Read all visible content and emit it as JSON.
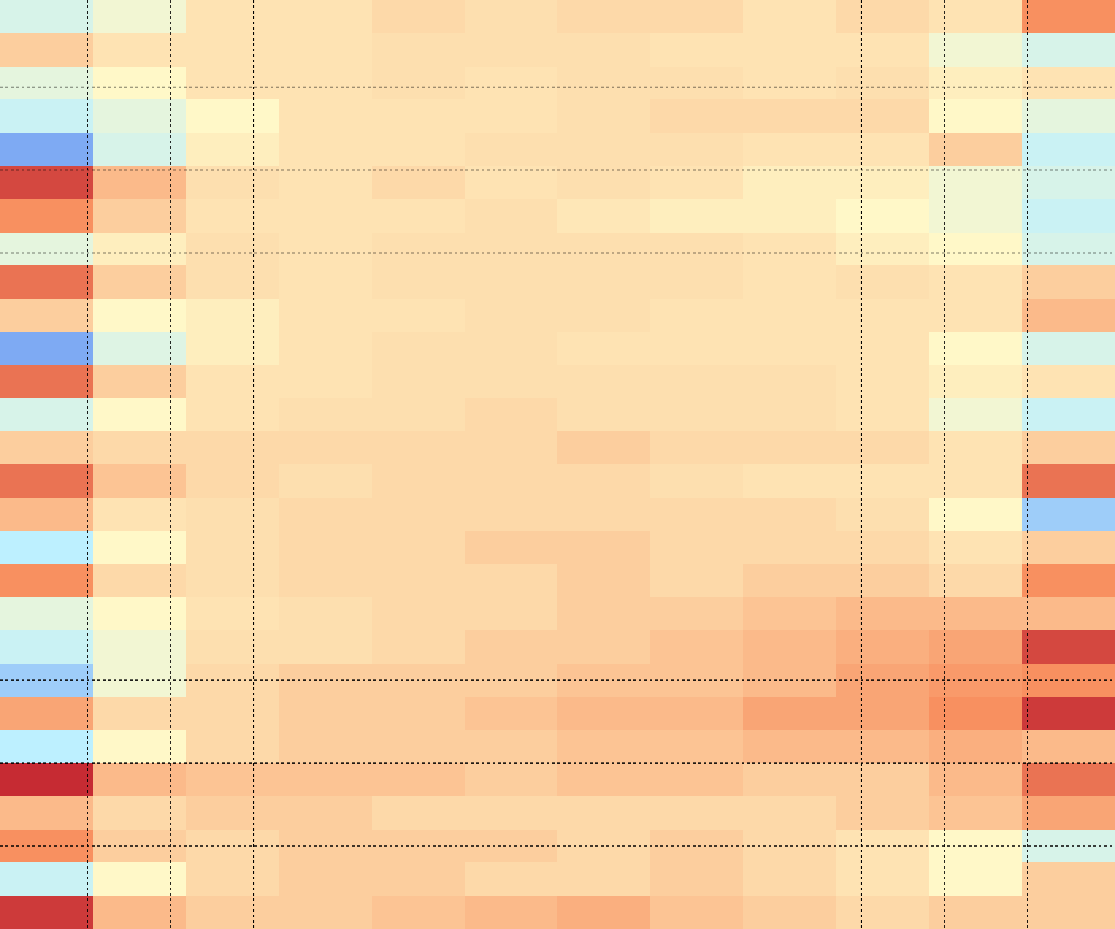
{
  "chart_data": {
    "type": "heatmap",
    "xlim": [
      0,
      134
    ],
    "ylim": [
      0,
      112
    ],
    "xticks": [
      10.5,
      20.5,
      30.5,
      103.5,
      113.5,
      123.5
    ],
    "yticks": [
      10.5,
      20.5,
      30.5,
      82,
      92,
      102
    ],
    "grid": true,
    "vlim": [
      -1,
      1
    ],
    "colors": [
      "#2040e0",
      "#bdf0ff",
      "#fff8c8",
      "#f89060",
      "#b00020"
    ],
    "values": [
      [
        -0.3,
        -0.1,
        0.1,
        0.1,
        0.15,
        0.12,
        0.15,
        0.15,
        0.1,
        0.15,
        0.1,
        0.5
      ],
      [
        0.2,
        0.1,
        0.1,
        0.1,
        0.12,
        0.12,
        0.12,
        0.1,
        0.1,
        0.1,
        -0.1,
        -0.3
      ],
      [
        -0.2,
        0,
        0.1,
        0.1,
        0.12,
        0.1,
        0.12,
        0.12,
        0.1,
        0.12,
        0.05,
        0.1
      ],
      [
        -0.4,
        -0.2,
        0,
        0.1,
        0.1,
        0.1,
        0.12,
        0.15,
        0.15,
        0.15,
        0,
        -0.2
      ],
      [
        -0.7,
        -0.3,
        0.05,
        0.1,
        0.1,
        0.12,
        0.12,
        0.12,
        0.1,
        0.1,
        0.2,
        -0.4
      ],
      [
        0.75,
        0.3,
        0.12,
        0.1,
        0.15,
        0.1,
        0.12,
        0.1,
        0.05,
        0.05,
        -0.1,
        -0.3
      ],
      [
        0.5,
        0.2,
        0.1,
        0.1,
        0.1,
        0.12,
        0.08,
        0.05,
        0.05,
        0,
        -0.1,
        -0.4
      ],
      [
        -0.2,
        0.05,
        0.12,
        0.1,
        0.12,
        0.12,
        0.12,
        0.12,
        0.1,
        0.05,
        0,
        -0.3
      ],
      [
        0.6,
        0.2,
        0.12,
        0.1,
        0.12,
        0.12,
        0.12,
        0.12,
        0.1,
        0.12,
        0.1,
        0.2
      ],
      [
        0.2,
        0,
        0.05,
        0.1,
        0.1,
        0.12,
        0.12,
        0.1,
        0.1,
        0.1,
        0.1,
        0.3
      ],
      [
        -0.7,
        -0.25,
        0.05,
        0.1,
        0.12,
        0.12,
        0.1,
        0.1,
        0.1,
        0.1,
        0,
        -0.3
      ],
      [
        0.6,
        0.2,
        0.1,
        0.1,
        0.12,
        0.12,
        0.12,
        0.12,
        0.12,
        0.1,
        0.05,
        0.1
      ],
      [
        -0.3,
        0,
        0.1,
        0.12,
        0.12,
        0.15,
        0.12,
        0.12,
        0.12,
        0.1,
        -0.1,
        -0.4
      ],
      [
        0.2,
        0.15,
        0.15,
        0.15,
        0.15,
        0.15,
        0.2,
        0.15,
        0.15,
        0.15,
        0.1,
        0.2
      ],
      [
        0.6,
        0.25,
        0.15,
        0.12,
        0.15,
        0.15,
        0.15,
        0.12,
        0.1,
        0.1,
        0.1,
        0.6
      ],
      [
        0.3,
        0.1,
        0.12,
        0.15,
        0.15,
        0.15,
        0.15,
        0.15,
        0.15,
        0.12,
        0,
        -0.6
      ],
      [
        -0.5,
        0,
        0.12,
        0.15,
        0.15,
        0.2,
        0.2,
        0.15,
        0.15,
        0.15,
        0.1,
        0.2
      ],
      [
        0.5,
        0.15,
        0.12,
        0.15,
        0.15,
        0.15,
        0.2,
        0.15,
        0.2,
        0.2,
        0.15,
        0.5
      ],
      [
        -0.2,
        0,
        0.1,
        0.12,
        0.15,
        0.15,
        0.2,
        0.2,
        0.25,
        0.3,
        0.3,
        0.3
      ],
      [
        -0.4,
        -0.1,
        0.12,
        0.12,
        0.15,
        0.2,
        0.2,
        0.25,
        0.3,
        0.35,
        0.4,
        0.75
      ],
      [
        -0.6,
        -0.1,
        0.15,
        0.2,
        0.2,
        0.2,
        0.25,
        0.25,
        0.3,
        0.4,
        0.45,
        0.5
      ],
      [
        0.4,
        0.15,
        0.15,
        0.2,
        0.2,
        0.25,
        0.3,
        0.3,
        0.4,
        0.4,
        0.5,
        0.8
      ],
      [
        -0.5,
        0,
        0.15,
        0.2,
        0.2,
        0.2,
        0.25,
        0.25,
        0.3,
        0.3,
        0.35,
        0.3
      ],
      [
        0.85,
        0.3,
        0.25,
        0.25,
        0.25,
        0.2,
        0.25,
        0.25,
        0.2,
        0.2,
        0.3,
        0.6
      ],
      [
        0.3,
        0.15,
        0.2,
        0.2,
        0.15,
        0.15,
        0.15,
        0.15,
        0.15,
        0.2,
        0.25,
        0.4
      ],
      [
        0.5,
        0.2,
        0.15,
        0.2,
        0.2,
        0.2,
        0.15,
        0.2,
        0.15,
        0.1,
        0,
        -0.3
      ],
      [
        -0.4,
        0,
        0.15,
        0.2,
        0.2,
        0.15,
        0.15,
        0.2,
        0.15,
        0.1,
        0,
        0.2
      ],
      [
        0.8,
        0.3,
        0.2,
        0.2,
        0.25,
        0.3,
        0.35,
        0.25,
        0.2,
        0.15,
        0.2,
        0.2
      ]
    ]
  }
}
